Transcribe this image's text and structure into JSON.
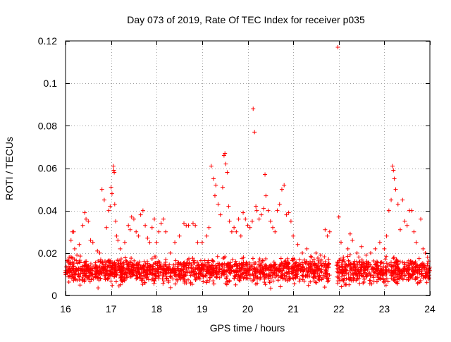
{
  "chart_data": {
    "type": "scatter",
    "title": "Day 073 of 2019, Rate Of TEC Index for receiver p035",
    "xlabel": "GPS time / hours",
    "ylabel": "ROTI / TECUs",
    "xlim": [
      16,
      24
    ],
    "ylim": [
      0,
      0.12
    ],
    "x_ticks": [
      16,
      17,
      18,
      19,
      20,
      21,
      22,
      23,
      24
    ],
    "y_ticks": [
      0,
      0.02,
      0.04,
      0.06,
      0.08,
      0.1,
      0.12
    ],
    "x_tick_labels": [
      "16",
      "17",
      "18",
      "19",
      "20",
      "21",
      "22",
      "23",
      "24"
    ],
    "y_tick_labels": [
      "0",
      "0.02",
      "0.04",
      "0.06",
      "0.08",
      "0.1",
      "0.12"
    ],
    "grid": true,
    "marker": "+",
    "series": [
      {
        "name": "ROTI",
        "color": "#ff0000",
        "points": [
          [
            16.05,
            0.012
          ],
          [
            16.08,
            0.018
          ],
          [
            16.12,
            0.026
          ],
          [
            16.15,
            0.03
          ],
          [
            16.18,
            0.03
          ],
          [
            16.2,
            0.022
          ],
          [
            16.25,
            0.019
          ],
          [
            16.3,
            0.024
          ],
          [
            16.38,
            0.033
          ],
          [
            16.42,
            0.039
          ],
          [
            16.45,
            0.036
          ],
          [
            16.5,
            0.035
          ],
          [
            16.55,
            0.026
          ],
          [
            16.6,
            0.025
          ],
          [
            16.7,
            0.021
          ],
          [
            16.75,
            0.02
          ],
          [
            16.8,
            0.05
          ],
          [
            16.85,
            0.045
          ],
          [
            16.9,
            0.032
          ],
          [
            16.95,
            0.04
          ],
          [
            16.98,
            0.042
          ],
          [
            17.0,
            0.051
          ],
          [
            17.02,
            0.048
          ],
          [
            17.05,
            0.061
          ],
          [
            17.06,
            0.059
          ],
          [
            17.07,
            0.058
          ],
          [
            17.08,
            0.043
          ],
          [
            17.1,
            0.035
          ],
          [
            17.12,
            0.028
          ],
          [
            17.15,
            0.026
          ],
          [
            17.2,
            0.022
          ],
          [
            17.3,
            0.025
          ],
          [
            17.38,
            0.033
          ],
          [
            17.42,
            0.031
          ],
          [
            17.45,
            0.037
          ],
          [
            17.5,
            0.036
          ],
          [
            17.55,
            0.03
          ],
          [
            17.6,
            0.028
          ],
          [
            17.65,
            0.038
          ],
          [
            17.7,
            0.04
          ],
          [
            17.75,
            0.033
          ],
          [
            17.8,
            0.027
          ],
          [
            17.85,
            0.025
          ],
          [
            17.9,
            0.032
          ],
          [
            17.95,
            0.036
          ],
          [
            18.0,
            0.025
          ],
          [
            18.05,
            0.03
          ],
          [
            18.1,
            0.034
          ],
          [
            18.15,
            0.036
          ],
          [
            18.2,
            0.03
          ],
          [
            18.3,
            0.02
          ],
          [
            18.4,
            0.025
          ],
          [
            18.5,
            0.028
          ],
          [
            18.6,
            0.034
          ],
          [
            18.65,
            0.033
          ],
          [
            18.7,
            0.033
          ],
          [
            18.8,
            0.034
          ],
          [
            18.85,
            0.033
          ],
          [
            18.9,
            0.025
          ],
          [
            19.0,
            0.025
          ],
          [
            19.1,
            0.028
          ],
          [
            19.15,
            0.032
          ],
          [
            19.2,
            0.061
          ],
          [
            19.25,
            0.055
          ],
          [
            19.28,
            0.047
          ],
          [
            19.3,
            0.052
          ],
          [
            19.35,
            0.043
          ],
          [
            19.4,
            0.038
          ],
          [
            19.45,
            0.051
          ],
          [
            19.48,
            0.066
          ],
          [
            19.5,
            0.067
          ],
          [
            19.52,
            0.062
          ],
          [
            19.55,
            0.058
          ],
          [
            19.58,
            0.042
          ],
          [
            19.6,
            0.035
          ],
          [
            19.65,
            0.03
          ],
          [
            19.7,
            0.032
          ],
          [
            19.75,
            0.03
          ],
          [
            19.8,
            0.036
          ],
          [
            19.85,
            0.028
          ],
          [
            19.9,
            0.039
          ],
          [
            19.95,
            0.036
          ],
          [
            20.0,
            0.033
          ],
          [
            20.05,
            0.032
          ],
          [
            20.1,
            0.035
          ],
          [
            20.12,
            0.088
          ],
          [
            20.15,
            0.077
          ],
          [
            20.18,
            0.042
          ],
          [
            20.2,
            0.04
          ],
          [
            20.25,
            0.036
          ],
          [
            20.3,
            0.038
          ],
          [
            20.35,
            0.041
          ],
          [
            20.38,
            0.057
          ],
          [
            20.4,
            0.047
          ],
          [
            20.45,
            0.04
          ],
          [
            20.5,
            0.035
          ],
          [
            20.55,
            0.032
          ],
          [
            20.6,
            0.03
          ],
          [
            20.65,
            0.04
          ],
          [
            20.7,
            0.043
          ],
          [
            20.75,
            0.05
          ],
          [
            20.8,
            0.052
          ],
          [
            20.85,
            0.038
          ],
          [
            20.9,
            0.039
          ],
          [
            20.95,
            0.035
          ],
          [
            21.0,
            0.028
          ],
          [
            21.1,
            0.024
          ],
          [
            21.2,
            0.02
          ],
          [
            21.3,
            0.022
          ],
          [
            21.4,
            0.018
          ],
          [
            21.5,
            0.02
          ],
          [
            21.6,
            0.019
          ],
          [
            21.7,
            0.031
          ],
          [
            21.75,
            0.028
          ],
          [
            21.8,
            0.03
          ],
          [
            21.98,
            0.117
          ],
          [
            22.0,
            0.037
          ],
          [
            22.05,
            0.025
          ],
          [
            22.1,
            0.018
          ],
          [
            22.2,
            0.022
          ],
          [
            22.25,
            0.029
          ],
          [
            22.3,
            0.026
          ],
          [
            22.4,
            0.02
          ],
          [
            22.5,
            0.023
          ],
          [
            22.6,
            0.019
          ],
          [
            22.7,
            0.02
          ],
          [
            22.8,
            0.022
          ],
          [
            22.9,
            0.025
          ],
          [
            23.0,
            0.022
          ],
          [
            23.05,
            0.028
          ],
          [
            23.1,
            0.04
          ],
          [
            23.15,
            0.045
          ],
          [
            23.18,
            0.061
          ],
          [
            23.2,
            0.059
          ],
          [
            23.22,
            0.055
          ],
          [
            23.25,
            0.05
          ],
          [
            23.3,
            0.043
          ],
          [
            23.35,
            0.031
          ],
          [
            23.4,
            0.045
          ],
          [
            23.45,
            0.035
          ],
          [
            23.5,
            0.033
          ],
          [
            23.55,
            0.04
          ],
          [
            23.6,
            0.04
          ],
          [
            23.65,
            0.03
          ],
          [
            23.7,
            0.025
          ],
          [
            23.8,
            0.036
          ],
          [
            23.85,
            0.022
          ],
          [
            23.9,
            0.02
          ],
          [
            23.95,
            0.018
          ]
        ]
      }
    ],
    "dense_band": {
      "note": "continuous cloud of measurements between ~0.003 and ~0.02 across 16-21.8 and 21.95-24 h",
      "segments": [
        [
          16.0,
          21.8
        ],
        [
          21.95,
          24.0
        ]
      ],
      "y_min": 0.003,
      "y_max": 0.02,
      "typical": 0.01
    }
  }
}
